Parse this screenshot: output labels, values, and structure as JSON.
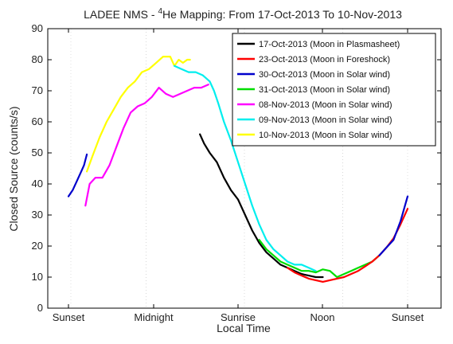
{
  "chart_data": {
    "type": "line",
    "title": {
      "main": "LADEE NMS - ",
      "sup": "4",
      "rest": "He Mapping: From 17-Oct-2013 To 10-Nov-2013"
    },
    "xlabel": "Local Time",
    "ylabel": "Closed Source (counts/s)",
    "xlim": [
      0,
      24
    ],
    "ylim": [
      0,
      90
    ],
    "grid": "vertical dotted",
    "legend_position": "top-right",
    "xticks": [
      {
        "value": 0,
        "label": "Sunset"
      },
      {
        "value": 6,
        "label": "Midnight"
      },
      {
        "value": 12,
        "label": "Sunrise"
      },
      {
        "value": 18,
        "label": "Noon"
      },
      {
        "value": 24,
        "label": "Sunset"
      }
    ],
    "yticks": [
      0,
      10,
      20,
      30,
      40,
      50,
      60,
      70,
      80,
      90
    ],
    "series": [
      {
        "name": "17-Oct-2013 (Moon in Plasmasheet)",
        "color": "#000000",
        "points": [
          [
            9.3,
            56
          ],
          [
            9.6,
            53
          ],
          [
            10,
            50
          ],
          [
            10.5,
            47
          ],
          [
            11,
            42
          ],
          [
            11.5,
            38
          ],
          [
            12,
            35
          ],
          [
            12.5,
            30
          ],
          [
            13,
            25
          ],
          [
            13.5,
            21
          ],
          [
            14,
            18
          ],
          [
            14.5,
            16
          ],
          [
            15,
            14
          ],
          [
            15.5,
            13
          ],
          [
            16,
            12
          ],
          [
            16.5,
            11
          ],
          [
            17,
            10.5
          ],
          [
            17.5,
            10
          ],
          [
            18,
            10
          ]
        ]
      },
      {
        "name": "23-Oct-2013 (Moon in Foreshock)",
        "color": "#ff0000",
        "points": [
          [
            15.5,
            13
          ],
          [
            16,
            11.5
          ],
          [
            16.5,
            10.5
          ],
          [
            17,
            9.5
          ],
          [
            17.5,
            9
          ],
          [
            18,
            8.5
          ],
          [
            18.5,
            9
          ],
          [
            19,
            9.5
          ],
          [
            19.5,
            10
          ],
          [
            20,
            11
          ],
          [
            20.5,
            12
          ],
          [
            21,
            13.5
          ],
          [
            21.5,
            15
          ],
          [
            22,
            17
          ],
          [
            22.5,
            19.5
          ],
          [
            23,
            22.5
          ],
          [
            23.5,
            27
          ],
          [
            24,
            32
          ]
        ]
      },
      {
        "name": "30-Oct-2013 (Moon in Solar wind)",
        "color": "#0000cc",
        "points": [
          [
            0,
            36
          ],
          [
            0.3,
            38
          ],
          [
            0.6,
            41
          ],
          [
            0.9,
            44
          ],
          [
            1.1,
            46
          ],
          [
            1.3,
            49.5
          ]
        ],
        "points2": [
          [
            22,
            17
          ],
          [
            22.5,
            19.5
          ],
          [
            23,
            22
          ],
          [
            23.5,
            28
          ],
          [
            24,
            36
          ]
        ]
      },
      {
        "name": "31-Oct-2013 (Moon in Solar wind)",
        "color": "#00dd00",
        "points": [
          [
            13.5,
            22
          ],
          [
            14,
            19
          ],
          [
            14.5,
            17
          ],
          [
            15,
            15
          ],
          [
            15.5,
            14
          ],
          [
            16,
            13
          ],
          [
            16.5,
            12
          ],
          [
            17,
            12
          ],
          [
            17.5,
            11.5
          ],
          [
            18,
            12.5
          ],
          [
            18.5,
            12
          ],
          [
            19,
            10
          ],
          [
            19.5,
            11
          ],
          [
            20,
            12
          ],
          [
            20.5,
            13
          ],
          [
            21,
            14
          ],
          [
            21.5,
            15
          ],
          [
            22,
            17
          ]
        ]
      },
      {
        "name": "08-Nov-2013 (Moon in Solar wind)",
        "color": "#ff00ff",
        "points": [
          [
            1.2,
            33
          ],
          [
            1.5,
            40
          ],
          [
            1.9,
            42
          ],
          [
            2.4,
            42
          ],
          [
            2.9,
            46
          ],
          [
            3.4,
            52
          ],
          [
            3.9,
            58
          ],
          [
            4.4,
            63
          ],
          [
            4.9,
            65
          ],
          [
            5.4,
            66
          ],
          [
            5.9,
            68
          ],
          [
            6.4,
            71
          ],
          [
            6.9,
            69
          ],
          [
            7.4,
            68
          ],
          [
            7.9,
            69
          ],
          [
            8.4,
            70
          ],
          [
            8.9,
            71
          ],
          [
            9.4,
            71
          ],
          [
            9.9,
            72
          ]
        ]
      },
      {
        "name": "09-Nov-2013 (Moon in Solar wind)",
        "color": "#00eeee",
        "points": [
          [
            7.5,
            78
          ],
          [
            8,
            77
          ],
          [
            8.5,
            76
          ],
          [
            9,
            76
          ],
          [
            9.5,
            75
          ],
          [
            10,
            73
          ],
          [
            10.3,
            70
          ],
          [
            10.6,
            66
          ],
          [
            11,
            60
          ],
          [
            11.5,
            54
          ],
          [
            12,
            47
          ],
          [
            12.5,
            40
          ],
          [
            13,
            33
          ],
          [
            13.5,
            27
          ],
          [
            14,
            22
          ],
          [
            14.5,
            19
          ],
          [
            15,
            17
          ],
          [
            15.5,
            15
          ],
          [
            16,
            14
          ],
          [
            16.5,
            14
          ],
          [
            17,
            13
          ],
          [
            17.5,
            12
          ]
        ]
      },
      {
        "name": "10-Nov-2013 (Moon in Solar wind)",
        "color": "#ffff00",
        "points": [
          [
            1.3,
            44
          ],
          [
            1.7,
            49
          ],
          [
            2.2,
            55
          ],
          [
            2.7,
            60
          ],
          [
            3.2,
            64
          ],
          [
            3.7,
            68
          ],
          [
            4.2,
            71
          ],
          [
            4.7,
            73
          ],
          [
            5.2,
            76
          ],
          [
            5.7,
            77
          ],
          [
            6.2,
            79
          ],
          [
            6.7,
            81
          ],
          [
            7.2,
            81
          ],
          [
            7.5,
            78
          ],
          [
            7.8,
            80
          ],
          [
            8.1,
            79
          ],
          [
            8.4,
            80
          ],
          [
            8.6,
            80
          ]
        ]
      }
    ]
  }
}
